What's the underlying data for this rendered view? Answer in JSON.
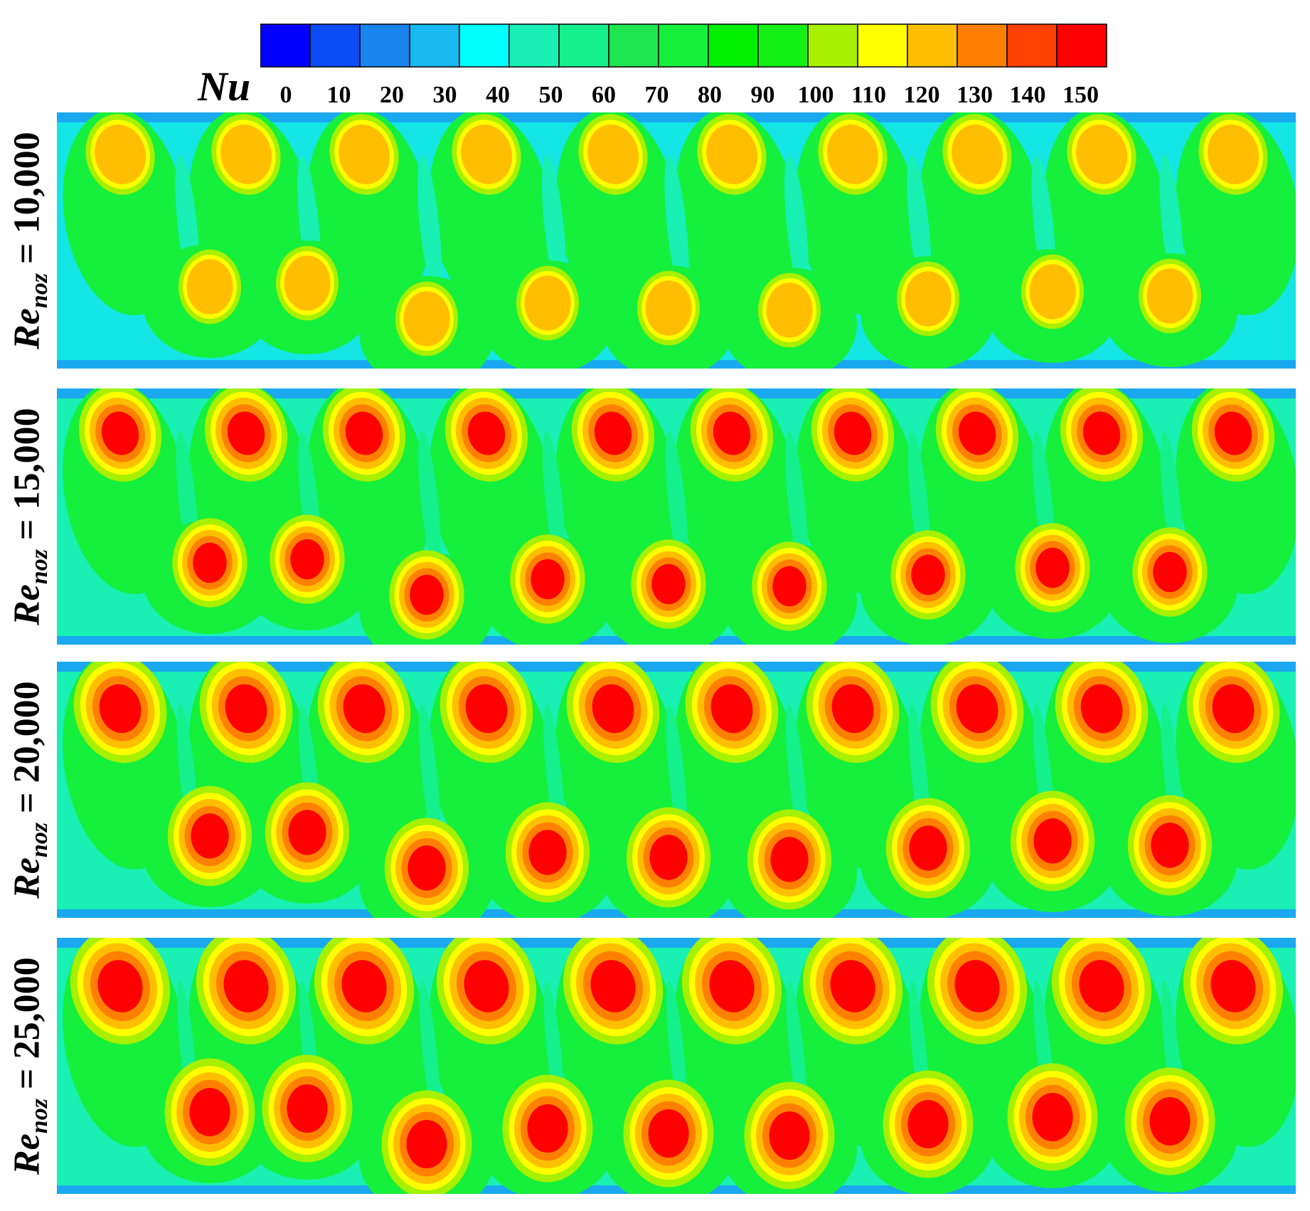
{
  "chart_data": {
    "type": "heatmap",
    "title": "",
    "colorbar": {
      "label": "Nu",
      "tick_labels": [
        "0",
        "10",
        "20",
        "30",
        "40",
        "50",
        "60",
        "70",
        "80",
        "90",
        "100",
        "110",
        "120",
        "130",
        "140",
        "150"
      ],
      "range": [
        0,
        150
      ],
      "colors": [
        "#0000ff",
        "#0a4cf5",
        "#1a84f0",
        "#18b8f0",
        "#00ffff",
        "#19f0b4",
        "#14f08c",
        "#1ee650",
        "#14f03c",
        "#00f000",
        "#14f014",
        "#a6f000",
        "#ffff00",
        "#ffbf00",
        "#ff8000",
        "#ff4000",
        "#ff0000"
      ]
    },
    "panels": [
      {
        "label_main": "Re",
        "label_sub": "noz",
        "label_value": "= 10,000",
        "reynolds": 10000,
        "peak_level": 0.55
      },
      {
        "label_main": "Re",
        "label_sub": "noz",
        "label_value": "= 15,000",
        "reynolds": 15000,
        "peak_level": 0.75
      },
      {
        "label_main": "Re",
        "label_sub": "noz",
        "label_value": "= 20,000",
        "reynolds": 20000,
        "peak_level": 0.9
      },
      {
        "label_main": "Re",
        "label_sub": "noz",
        "label_value": "= 25,000",
        "reynolds": 25000,
        "peak_level": 1.0
      }
    ]
  }
}
